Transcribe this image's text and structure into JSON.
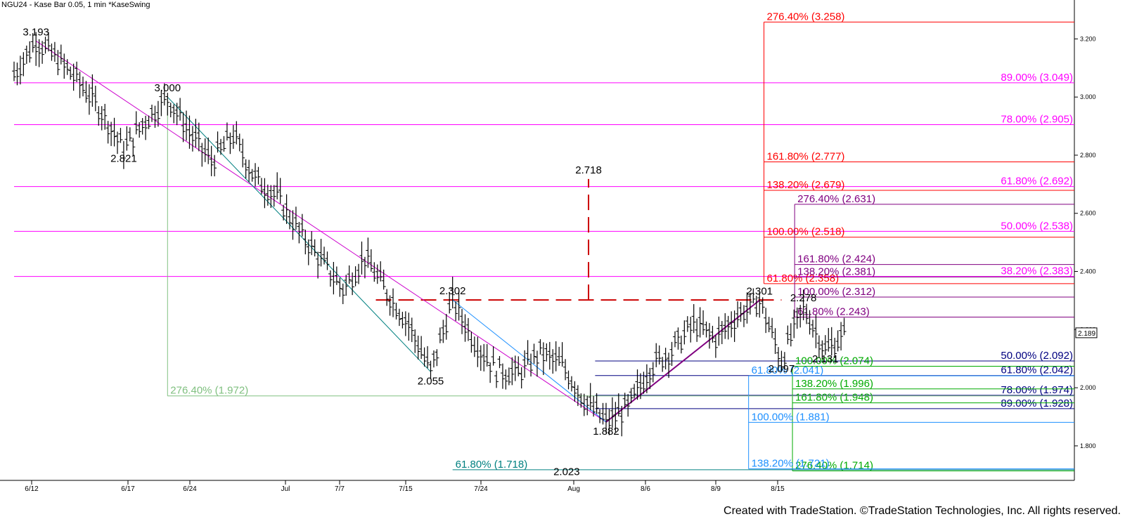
{
  "header": {
    "title": "NGU24 - Kase Bar 0.05, 1 min  *KaseSwing"
  },
  "footer": {
    "credit": "Created with TradeStation. ©TradeStation Technologies, Inc. All rights reserved."
  },
  "chart_data": {
    "type": "candlestick",
    "symbol": "NGU24",
    "last_price": "2.189",
    "y_axis": {
      "ticks": [
        "3.200",
        "3.000",
        "2.800",
        "2.600",
        "2.400",
        "2.200",
        "2.000",
        "1.800"
      ],
      "ylim": [
        1.72,
        3.3
      ]
    },
    "x_axis": {
      "ticks": [
        "6/12",
        "6/17",
        "6/24",
        "Jul",
        "7/7",
        "7/15",
        "7/24",
        "Aug",
        "8/6",
        "8/9",
        "8/15"
      ]
    },
    "price_path": [
      [
        0,
        3.08
      ],
      [
        1,
        3.193
      ],
      [
        2,
        3.13
      ],
      [
        3,
        3.05
      ],
      [
        4,
        2.95
      ],
      [
        5,
        2.821
      ],
      [
        6,
        2.92
      ],
      [
        7,
        3.0
      ],
      [
        8,
        2.88
      ],
      [
        9,
        2.78
      ],
      [
        10,
        2.87
      ],
      [
        11,
        2.72
      ],
      [
        12,
        2.66
      ],
      [
        13,
        2.54
      ],
      [
        14,
        2.44
      ],
      [
        15,
        2.34
      ],
      [
        16,
        2.45
      ],
      [
        17,
        2.33
      ],
      [
        18,
        2.22
      ],
      [
        19,
        2.055
      ],
      [
        20,
        2.302
      ],
      [
        21,
        2.16
      ],
      [
        22,
        2.06
      ],
      [
        23,
        2.05
      ],
      [
        24,
        2.12
      ],
      [
        25,
        2.08
      ],
      [
        26,
        1.96
      ],
      [
        27,
        1.882
      ],
      [
        28,
        1.93
      ],
      [
        29,
        2.07
      ],
      [
        30,
        2.13
      ],
      [
        31,
        2.22
      ],
      [
        32,
        2.17
      ],
      [
        33,
        2.25
      ],
      [
        34,
        2.301
      ],
      [
        35,
        2.097
      ],
      [
        36,
        2.278
      ],
      [
        37,
        2.131
      ],
      [
        38,
        2.189
      ]
    ],
    "swing_labels": [
      {
        "text": "3.193",
        "x": 1,
        "y": 3.193,
        "pos": "above"
      },
      {
        "text": "3.000",
        "x": 7,
        "y": 3.0,
        "pos": "above"
      },
      {
        "text": "2.821",
        "x": 5,
        "y": 2.821,
        "pos": "below"
      },
      {
        "text": "2.302",
        "x": 20,
        "y": 2.302,
        "pos": "above"
      },
      {
        "text": "2.055",
        "x": 19,
        "y": 2.055,
        "pos": "below"
      },
      {
        "text": "1.882",
        "x": 27,
        "y": 1.882,
        "pos": "below"
      },
      {
        "text": "2.301",
        "x": 34,
        "y": 2.301,
        "pos": "above"
      },
      {
        "text": "2.278",
        "x": 36,
        "y": 2.278,
        "pos": "above"
      },
      {
        "text": "2.097",
        "x": 35,
        "y": 2.097,
        "pos": "below"
      },
      {
        "text": "2.131",
        "x": 37,
        "y": 2.131,
        "pos": "below"
      },
      {
        "text": "2.718",
        "x": 26.2,
        "y": 2.718,
        "pos": "above"
      },
      {
        "text": "2.023",
        "x": 25.2,
        "y": 1.7,
        "pos": "center"
      }
    ],
    "projection_groups": [
      {
        "color": "#ff00ff",
        "x_from": 0,
        "levels": [
          {
            "label": "89.00% (3.049)",
            "value": 3.049
          },
          {
            "label": "78.00% (2.905)",
            "value": 2.905
          },
          {
            "label": "61.80% (2.692)",
            "value": 2.692
          },
          {
            "label": "50.00% (2.538)",
            "value": 2.538
          },
          {
            "label": "38.20% (2.383)",
            "value": 2.383
          }
        ]
      },
      {
        "color": "#ff0000",
        "x_from": 34.2,
        "levels": [
          {
            "label": "276.40% (3.258)",
            "value": 3.258
          },
          {
            "label": "161.80% (2.777)",
            "value": 2.777
          },
          {
            "label": "138.20% (2.679)",
            "value": 2.679
          },
          {
            "label": "100.00% (2.518)",
            "value": 2.518
          },
          {
            "label": "61.80% (2.358)",
            "value": 2.358
          }
        ]
      },
      {
        "color": "#800080",
        "x_from": 35.6,
        "levels": [
          {
            "label": "276.40% (2.631)",
            "value": 2.631
          },
          {
            "label": "161.80% (2.424)",
            "value": 2.424
          },
          {
            "label": "138.20% (2.381)",
            "value": 2.381
          },
          {
            "label": "100.00% (2.312)",
            "value": 2.312
          },
          {
            "label": "61.80% (2.243)",
            "value": 2.243
          }
        ]
      },
      {
        "color": "#000080",
        "x_from": 26.5,
        "levels": [
          {
            "label": "50.00% (2.092)",
            "value": 2.092
          },
          {
            "label": "61.80% (2.042)",
            "value": 2.042
          },
          {
            "label": "78.00% (1.974)",
            "value": 1.974
          },
          {
            "label": "89.00% (1.928)",
            "value": 1.928
          }
        ]
      },
      {
        "color": "#00aa00",
        "x_from": 35.5,
        "levels": [
          {
            "label": "100.00% (2.074)",
            "value": 2.074
          },
          {
            "label": "138.20% (1.996)",
            "value": 1.996
          },
          {
            "label": "161.80% (1.948)",
            "value": 1.948
          },
          {
            "label": "276.40% (1.714)",
            "value": 1.714
          }
        ]
      },
      {
        "color": "#1e90ff",
        "x_from": 33.5,
        "levels": [
          {
            "label": "61.80% (2.041)",
            "value": 2.041
          },
          {
            "label": "100.00% (1.881)",
            "value": 1.881
          },
          {
            "label": "138.20% (1.721)",
            "value": 1.721
          }
        ]
      },
      {
        "color": "#80c080",
        "x_from": 7,
        "levels": [
          {
            "label": "276.40% (1.972)",
            "value": 1.972
          }
        ]
      },
      {
        "color": "#008080",
        "x_from": 20,
        "levels": [
          {
            "label": "61.80% (1.718)",
            "value": 1.718
          }
        ]
      }
    ],
    "dashed_target": {
      "color": "#cc0000",
      "value": 2.302,
      "from_x": 16.5,
      "to_x": 35,
      "peak": 2.718,
      "peak_x": 26.2
    }
  }
}
